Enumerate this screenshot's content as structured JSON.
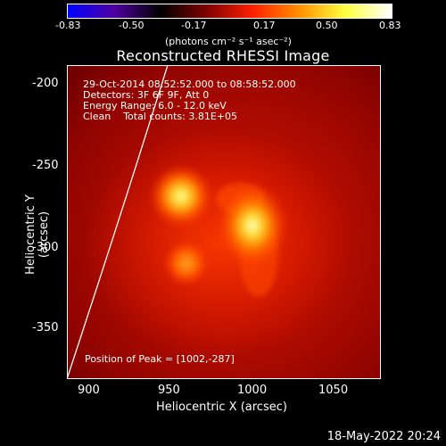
{
  "colorbar": {
    "ticks": [
      "-0.83",
      "-0.50",
      "-0.17",
      "0.17",
      "0.50",
      "0.83"
    ],
    "units": "(photons cm⁻² s⁻¹ asec⁻²)",
    "gradient": [
      "#0000ff",
      "#5000a0",
      "#000000",
      "#800000",
      "#ff2000",
      "#ff9000",
      "#ffff40",
      "#ffffff"
    ]
  },
  "title": "Reconstructed RHESSI Image",
  "info": {
    "time": "29-Oct-2014 08:52:52.000 to 08:58:52.000",
    "detectors": "Detectors: 3F 6F 9F, Att 0",
    "energy": "Energy Range: 6.0 - 12.0 keV",
    "method": "Clean    Total counts: 3.81E+05"
  },
  "peak": "Position of Peak = [1002,-287]",
  "axes": {
    "xlabel": "Heliocentric X (arcsec)",
    "ylabel": "Heliocentric Y (arcsec)",
    "xticks": [
      "900",
      "950",
      "1000",
      "1050"
    ],
    "yticks": [
      "-200",
      "-250",
      "-300",
      "-350"
    ]
  },
  "datestamp": "18-May-2022 20:24"
}
